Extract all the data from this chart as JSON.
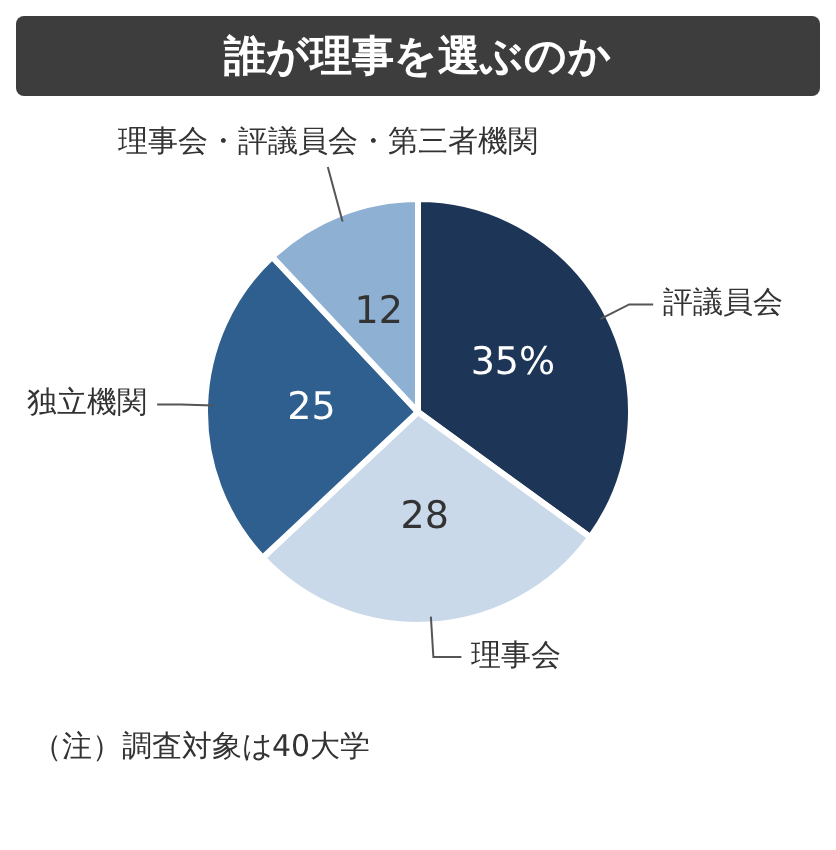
{
  "chart_data": {
    "type": "pie",
    "title": "誰が理事を選ぶのか",
    "categories": [
      "評議員会",
      "理事会",
      "独立機関",
      "理事会・評議員会・第三者機関"
    ],
    "values": [
      35,
      28,
      25,
      12
    ],
    "value_labels": [
      "35%",
      "28",
      "25",
      "12"
    ],
    "colors": [
      "#1d3658",
      "#c9d9ea",
      "#2e5f8e",
      "#8eb0d2"
    ],
    "annotations": [
      "（注）調査対象は40大学"
    ]
  }
}
